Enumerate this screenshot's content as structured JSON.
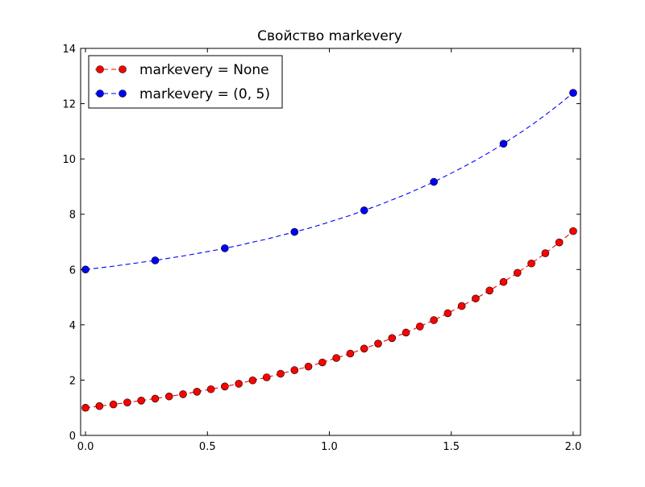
{
  "chart_data": {
    "type": "line",
    "title": "Свойство markevery",
    "xlabel": "",
    "ylabel": "",
    "xlim": [
      -0.02,
      2.03
    ],
    "ylim": [
      0,
      14
    ],
    "grid": false,
    "legend_position": "upper-left",
    "x_ticks": [
      "0.0",
      "0.5",
      "1.0",
      "1.5",
      "2.0"
    ],
    "y_ticks": [
      "0",
      "2",
      "4",
      "6",
      "8",
      "10",
      "12",
      "14"
    ],
    "series": [
      {
        "name": "markevery = None",
        "color": "#ff0000",
        "marker_color": "#ff0000",
        "line_style": "dashed",
        "marker": "circle",
        "x": [
          0,
          0.0571,
          0.1143,
          0.1714,
          0.2286,
          0.2857,
          0.3429,
          0.4,
          0.4571,
          0.5143,
          0.5714,
          0.6286,
          0.6857,
          0.7429,
          0.8,
          0.8571,
          0.9143,
          0.9714,
          1.0286,
          1.0857,
          1.1429,
          1.2,
          1.2571,
          1.3143,
          1.3714,
          1.4286,
          1.4857,
          1.5429,
          1.6,
          1.6571,
          1.7143,
          1.7714,
          1.8286,
          1.8857,
          1.9429,
          2.0
        ],
        "y": [
          1.0,
          1.06,
          1.12,
          1.19,
          1.26,
          1.33,
          1.41,
          1.49,
          1.58,
          1.67,
          1.77,
          1.87,
          1.99,
          2.1,
          2.23,
          2.36,
          2.49,
          2.64,
          2.8,
          2.96,
          3.14,
          3.32,
          3.52,
          3.72,
          3.94,
          4.17,
          4.42,
          4.68,
          4.95,
          5.24,
          5.55,
          5.88,
          6.22,
          6.59,
          6.98,
          7.39
        ],
        "markevery": "None"
      },
      {
        "name": "markevery = (0, 5)",
        "color": "#0000ff",
        "marker_color": "#0000ff",
        "line_style": "dashed",
        "marker": "circle",
        "x": [
          0,
          0.0571,
          0.1143,
          0.1714,
          0.2286,
          0.2857,
          0.3429,
          0.4,
          0.4571,
          0.5143,
          0.5714,
          0.6286,
          0.6857,
          0.7429,
          0.8,
          0.8571,
          0.9143,
          0.9714,
          1.0286,
          1.0857,
          1.1429,
          1.2,
          1.2571,
          1.3143,
          1.3714,
          1.4286,
          1.4857,
          1.5429,
          1.6,
          1.6571,
          1.7143,
          1.7714,
          1.8286,
          1.8857,
          1.9429,
          2.0
        ],
        "y": [
          6.0,
          6.06,
          6.12,
          6.19,
          6.26,
          6.33,
          6.41,
          6.49,
          6.58,
          6.67,
          6.77,
          6.87,
          6.99,
          7.1,
          7.23,
          7.36,
          7.49,
          7.64,
          7.8,
          7.96,
          8.14,
          8.32,
          8.52,
          8.72,
          8.94,
          9.17,
          9.42,
          9.68,
          9.95,
          10.24,
          10.55,
          10.88,
          11.22,
          11.59,
          11.98,
          12.39
        ],
        "markevery": "(0, 5)",
        "marker_indices": [
          0,
          5,
          10,
          15,
          20,
          25,
          30,
          35
        ]
      }
    ]
  }
}
